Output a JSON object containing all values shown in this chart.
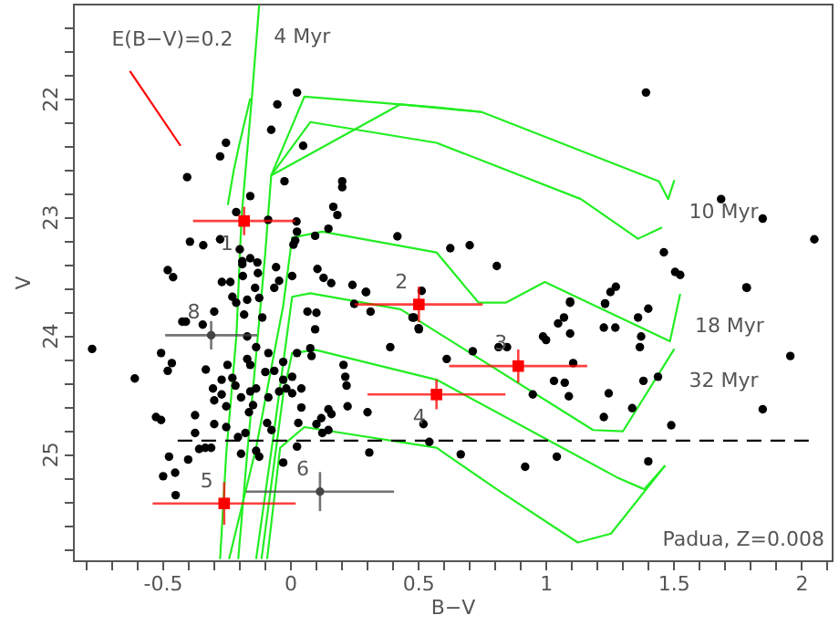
{
  "chart_data": {
    "type": "scatter",
    "xlabel": "B−V",
    "ylabel": "V",
    "xlim": [
      -0.85,
      2.12
    ],
    "ylim": [
      25.9,
      21.2
    ],
    "xticks": [
      {
        "value": -0.8,
        "label": null
      },
      {
        "value": -0.7,
        "label": null
      },
      {
        "value": -0.6,
        "label": null
      },
      -0.5,
      {
        "value": -0.4,
        "label": null
      },
      {
        "value": -0.3,
        "label": null
      },
      {
        "value": -0.2,
        "label": null
      },
      {
        "value": -0.1,
        "label": null
      },
      0,
      {
        "value": 0.1,
        "label": null
      },
      {
        "value": 0.2,
        "label": null
      },
      {
        "value": 0.3,
        "label": null
      },
      {
        "value": 0.4,
        "label": null
      },
      0.5,
      {
        "value": 0.6,
        "label": null
      },
      {
        "value": 0.7,
        "label": null
      },
      {
        "value": 0.8,
        "label": null
      },
      {
        "value": 0.9,
        "label": null
      },
      1,
      {
        "value": 1.1,
        "label": null
      },
      {
        "value": 1.2,
        "label": null
      },
      {
        "value": 1.3,
        "label": null
      },
      {
        "value": 1.4,
        "label": null
      },
      1.5,
      {
        "value": 1.6,
        "label": null
      },
      {
        "value": 1.7,
        "label": null
      },
      {
        "value": 1.8,
        "label": null
      },
      {
        "value": 1.9,
        "label": null
      },
      2,
      {
        "value": 2.1,
        "label": null
      }
    ],
    "yticks": [
      {
        "value": 21.4,
        "label": null
      },
      {
        "value": 21.6,
        "label": null
      },
      {
        "value": 21.8,
        "label": null
      },
      22,
      {
        "value": 22.2,
        "label": null
      },
      {
        "value": 22.4,
        "label": null
      },
      {
        "value": 22.6,
        "label": null
      },
      {
        "value": 22.8,
        "label": null
      },
      23,
      {
        "value": 23.2,
        "label": null
      },
      {
        "value": 23.4,
        "label": null
      },
      {
        "value": 23.6,
        "label": null
      },
      {
        "value": 23.8,
        "label": null
      },
      24,
      {
        "value": 24.2,
        "label": null
      },
      {
        "value": 24.4,
        "label": null
      },
      {
        "value": 24.6,
        "label": null
      },
      {
        "value": 24.8,
        "label": null
      },
      25,
      {
        "value": 25.2,
        "label": null
      },
      {
        "value": 25.4,
        "label": null
      },
      {
        "value": 25.6,
        "label": null
      },
      {
        "value": 25.8,
        "label": null
      }
    ],
    "grid": false,
    "series": [
      {
        "type": "line",
        "name": "4 Myr",
        "color": "#22ee22",
        "x": [
          -0.274,
          -0.25,
          -0.21,
          -0.19,
          -0.15,
          -0.121
        ],
        "values": [
          25.89,
          25.0,
          24.0,
          23.0,
          22.0,
          21.21
        ]
      },
      {
        "type": "line",
        "color": "#22ee22",
        "x": [
          -0.244,
          -0.22,
          -0.2,
          -0.156
        ],
        "values": [
          22.9,
          22.6,
          22.4,
          22.0
        ]
      },
      {
        "type": "line",
        "name": "10 Myr",
        "color": "#22ee22",
        "x": [
          -0.203,
          -0.168,
          -0.126,
          -0.097,
          -0.074,
          0.056,
          0.573,
          0.75,
          1.444,
          1.48,
          1.504
        ],
        "values": [
          25.89,
          25.0,
          24.0,
          23.3,
          22.65,
          21.985,
          22.075,
          22.115,
          22.7,
          22.85,
          22.69
        ]
      },
      {
        "type": "line",
        "color": "#22ee22",
        "x": [
          -0.074,
          0.079,
          0.573,
          1.138,
          1.362,
          1.456
        ],
        "values": [
          22.65,
          22.2,
          22.375,
          22.85,
          23.185,
          23.09
        ]
      },
      {
        "type": "line",
        "color": "#22ee22",
        "x": [
          -0.074,
          0.432,
          0.75
        ],
        "values": [
          22.65,
          22.05,
          22.115
        ]
      },
      {
        "type": "line",
        "name": "18 Myr",
        "color": "#22ee22",
        "x": [
          -0.239,
          -0.133,
          -0.027,
          0.008,
          0.126,
          0.573,
          0.738,
          0.844,
          0.997,
          1.487,
          1.527
        ],
        "values": [
          25.89,
          24.95,
          23.75,
          23.175,
          23.125,
          23.3,
          23.725,
          23.725,
          23.55,
          24.05,
          23.65
        ]
      },
      {
        "type": "line",
        "name": "32 Myr",
        "color": "#22ee22",
        "x": [
          -0.133,
          -0.062,
          0.008,
          0.079,
          0.432,
          1.186,
          1.303,
          1.504
        ],
        "values": [
          25.89,
          24.8,
          23.675,
          23.645,
          23.78,
          24.8,
          24.81,
          24.115
        ]
      },
      {
        "type": "line",
        "color": "#22ee22",
        "x": [
          -0.112,
          -0.027,
          0.008,
          0.102,
          0.573,
          1.28,
          1.386,
          1.468
        ],
        "values": [
          25.89,
          24.5,
          24.15,
          24.125,
          24.375,
          25.2,
          25.3,
          25.1
        ]
      },
      {
        "type": "line",
        "color": "#22ee22",
        "x": [
          -0.09,
          -0.039,
          0.056,
          0.573,
          0.809,
          1.126,
          1.256,
          1.468
        ],
        "values": [
          25.89,
          24.95,
          24.775,
          24.95,
          25.3,
          25.75,
          25.675,
          25.1
        ]
      },
      {
        "type": "line",
        "name": "E(B−V)=0.2",
        "color": "#ff0000",
        "x": [
          -0.429,
          -0.627
        ],
        "values": [
          22.4,
          21.77
        ]
      },
      {
        "type": "line",
        "color": "#000000",
        "line_style": "dashed",
        "x": [
          -0.44,
          2.03
        ],
        "values": [
          24.89,
          24.89
        ]
      },
      {
        "color": "#000000",
        "marker": "circle",
        "x": [
          -0.403,
          -0.251,
          -0.274,
          -0.05,
          -0.074,
          0.027,
          0.051,
          -0.022,
          0.204,
          0.204,
          0.169,
          0.185,
          -0.156,
          -0.211,
          -0.086,
          0.025,
          0.027,
          0.02,
          0.013,
          0.098,
          0.15,
          -0.392,
          -0.34,
          -0.274,
          -0.197,
          -0.187,
          -0.187,
          -0.156,
          -0.128,
          -0.126,
          -0.185,
          -0.234,
          -0.267,
          -0.055,
          0.008,
          -0.043,
          0.107,
          0.131,
          0.161,
          0.298,
          0.42,
          -0.479,
          -0.458,
          -0.211,
          -0.121,
          1.393,
          1.687,
          1.85,
          2.052,
          0.627,
          0.703,
          0.809,
          1.463,
          1.507,
          1.527,
          1.788,
          1.275,
          1.254,
          1.096,
          1.233,
          -0.775,
          -0.608,
          -0.505,
          -0.463,
          -0.479,
          -0.422,
          -0.408,
          -0.342,
          -0.297,
          -0.33,
          -0.245,
          -0.268,
          -0.226,
          -0.214,
          -0.268,
          -0.297,
          -0.372,
          -0.525,
          -0.505,
          -0.372,
          -0.297,
          -0.25,
          -0.332,
          -0.356,
          -0.309,
          -0.474,
          -0.399,
          -0.497,
          -0.45,
          -0.448,
          -0.204,
          -0.192,
          -0.175,
          -0.133,
          -0.121,
          -0.027,
          -0.161,
          -0.145,
          -0.09,
          -0.073,
          -0.192,
          -0.156,
          -0.133,
          -0.085,
          -0.043,
          -0.015,
          0.008,
          0.044,
          0.008,
          -0.027,
          -0.062,
          -0.097,
          -0.156,
          -0.168,
          -0.133,
          -0.085,
          -0.027,
          0.027,
          0.079,
          0.084,
          0.122,
          0.15,
          0.162,
          0.103,
          0.032,
          0.027,
          0.126,
          0.15,
          0.044,
          -0.109,
          -0.18,
          -0.168,
          -0.226,
          -0.137,
          -0.062,
          0.068,
          0.103,
          0.098,
          -0.168,
          0.209,
          0.216,
          0.221,
          0.225,
          0.303,
          0.31,
          0.392,
          0.504,
          0.485,
          0.315,
          0.296,
          0.244,
          0.251,
          -0.25,
          -0.302,
          0.515,
          0.479,
          0.503,
          0.613,
          0.715,
          0.816,
          0.849,
          0.99,
          1.002,
          1.049,
          1.096,
          1.072,
          1.096,
          1.108,
          1.033,
          1.075,
          1.091,
          0.95,
          1.233,
          1.228,
          1.273,
          1.362,
          1.402,
          1.374,
          1.369,
          1.383,
          1.247,
          1.339,
          1.228,
          1.44,
          1.492,
          1.402,
          1.044,
          0.92,
          0.668,
          0.545,
          0.522,
          1.85,
          1.958,
          1.786
        ],
        "values": [
          22.665,
          22.375,
          22.49,
          22.05,
          22.265,
          21.95,
          22.4,
          22.7,
          22.7,
          22.75,
          22.915,
          22.985,
          22.825,
          22.96,
          23.025,
          23.04,
          23.125,
          23.2,
          23.235,
          23.16,
          23.1,
          23.21,
          23.24,
          23.19,
          23.275,
          23.375,
          23.4,
          23.35,
          23.385,
          23.475,
          23.5,
          23.55,
          23.55,
          23.425,
          23.5,
          23.54,
          23.44,
          23.515,
          23.56,
          23.635,
          23.165,
          23.45,
          23.51,
          23.725,
          23.685,
          21.95,
          22.85,
          23.015,
          23.19,
          23.265,
          23.24,
          23.415,
          23.3,
          23.465,
          23.49,
          23.6,
          23.59,
          23.635,
          23.715,
          23.73,
          24.115,
          24.365,
          24.15,
          24.235,
          24.3,
          23.885,
          23.885,
          23.91,
          23.8,
          24.29,
          24.25,
          24.375,
          24.36,
          24.425,
          24.5,
          24.55,
          24.675,
          24.69,
          24.715,
          24.825,
          24.75,
          24.775,
          24.95,
          24.96,
          24.95,
          25.025,
          25.05,
          25.19,
          25.16,
          25.35,
          24.86,
          25.0,
          24.825,
          24.975,
          25.025,
          25.075,
          24.65,
          24.59,
          24.74,
          24.8,
          24.525,
          24.475,
          24.45,
          24.525,
          24.475,
          24.45,
          24.49,
          24.45,
          24.35,
          24.375,
          24.3,
          24.31,
          24.25,
          24.2,
          24.1,
          24.15,
          24.225,
          24.15,
          24.11,
          24.175,
          24.7,
          24.625,
          24.665,
          24.75,
          24.74,
          24.94,
          24.825,
          24.8,
          24.61,
          23.85,
          23.825,
          23.7,
          23.675,
          23.6,
          23.6,
          23.8,
          23.81,
          23.95,
          24.01,
          24.25,
          24.35,
          24.425,
          24.6,
          24.65,
          24.99,
          24.1,
          23.95,
          23.85,
          23.8,
          23.635,
          23.575,
          23.735,
          24.6,
          24.45,
          23.625,
          23.85,
          23.94,
          24.2,
          24.135,
          24.1,
          24.1,
          24.01,
          24.04,
          23.9,
          23.725,
          23.85,
          23.985,
          24.235,
          24.385,
          24.4,
          24.515,
          24.5,
          23.735,
          23.935,
          23.935,
          23.85,
          23.775,
          24.01,
          24.1,
          24.385,
          24.49,
          24.615,
          24.69,
          24.35,
          24.76,
          25.065,
          25.025,
          25.11,
          25.005,
          24.9,
          24.75,
          24.625,
          24.175,
          23.595
        ]
      },
      {
        "type": "scatter",
        "name": "1",
        "color": "#ff0000",
        "marker": "square",
        "x": [
          -0.18
        ],
        "values": [
          23.035
        ],
        "xerrors": [
          0.2
        ],
        "errors": [
          0.12
        ]
      },
      {
        "type": "scatter",
        "name": "2",
        "color": "#ff0000",
        "marker": "square",
        "x": [
          0.504
        ],
        "values": [
          23.74
        ],
        "xerrors": [
          0.25
        ],
        "errors": [
          0.15
        ]
      },
      {
        "type": "scatter",
        "name": "3",
        "color": "#ff0000",
        "marker": "square",
        "x": [
          0.893
        ],
        "values": [
          24.26
        ],
        "xerrors": [
          0.27
        ],
        "errors": [
          0.14
        ]
      },
      {
        "type": "scatter",
        "name": "4",
        "color": "#ff0000",
        "marker": "square",
        "x": [
          0.573
        ],
        "values": [
          24.5
        ],
        "xerrors": [
          0.27
        ],
        "errors": [
          0.125
        ]
      },
      {
        "type": "scatter",
        "name": "5",
        "color": "#ff0000",
        "marker": "square",
        "x": [
          -0.258
        ],
        "values": [
          25.42
        ],
        "xerrors": [
          0.28
        ],
        "errors": [
          0.18
        ]
      },
      {
        "type": "scatter",
        "name": "6",
        "color": "#444444",
        "marker": "circle",
        "x": [
          0.117
        ],
        "values": [
          25.32
        ],
        "xerrors": [
          0.29
        ],
        "errors": [
          0.165
        ]
      },
      {
        "type": "scatter",
        "name": "8",
        "color": "#444444",
        "marker": "circle",
        "x": [
          -0.309
        ],
        "values": [
          24.0
        ],
        "xerrors": [
          0.18
        ],
        "errors": [
          0.12
        ]
      }
    ],
    "annotations": [
      "Padua, Z=0.008"
    ]
  }
}
